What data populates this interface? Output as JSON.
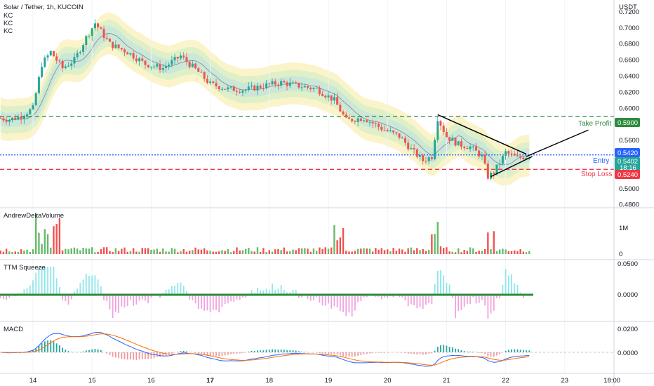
{
  "header": {
    "title": "Solar / Tether, 1h, KUCOIN",
    "indicators": [
      "KC",
      "KC",
      "KC"
    ],
    "currency": "USDT"
  },
  "colors": {
    "up": "#26a69a",
    "down": "#ef5350",
    "take_profit": "#2e8b3e",
    "entry": "#2962ff",
    "stop_loss": "#f23645",
    "band_outer": "#fbf3c4",
    "band_mid": "#dcefc8",
    "band_inner": "#c9e6d9",
    "squeeze_pos": "#8ee6ea",
    "squeeze_neg": "#f0a3e0",
    "macd_line": "#2962ff",
    "signal_line": "#ff6d00",
    "vol_up": "#66bb6a",
    "vol_down": "#ef5350"
  },
  "chart_data": [
    {
      "name": "price",
      "type": "line",
      "ylabel": "USDT",
      "y_ticks": [
        "0.7200",
        "0.7000",
        "0.6800",
        "0.6600",
        "0.6400",
        "0.6200",
        "0.6000",
        "0.5800",
        "0.5600",
        "0.5400",
        "0.5200",
        "0.5000",
        "0.4800"
      ],
      "ylim": [
        0.478,
        0.726
      ],
      "x_ticks": [
        "14",
        "15",
        "16",
        "17",
        "18",
        "19",
        "20",
        "21",
        "22",
        "23",
        "18:00"
      ],
      "x": [
        13.4,
        13.6,
        13.8,
        14.0,
        14.15,
        14.3,
        14.5,
        14.7,
        14.9,
        15.05,
        15.3,
        15.6,
        15.9,
        16.2,
        16.5,
        16.8,
        17.0,
        17.3,
        17.6,
        17.9,
        18.2,
        18.5,
        18.8,
        19.1,
        19.3,
        19.6,
        19.9,
        20.2,
        20.45,
        20.6,
        20.75,
        20.85,
        21.0,
        21.2,
        21.4,
        21.6,
        21.7,
        21.8,
        22.0,
        22.2,
        22.4
      ],
      "close": [
        0.588,
        0.586,
        0.59,
        0.6,
        0.655,
        0.67,
        0.65,
        0.66,
        0.688,
        0.706,
        0.68,
        0.67,
        0.655,
        0.65,
        0.665,
        0.645,
        0.63,
        0.624,
        0.623,
        0.628,
        0.632,
        0.628,
        0.624,
        0.61,
        0.585,
        0.588,
        0.575,
        0.565,
        0.545,
        0.535,
        0.54,
        0.588,
        0.565,
        0.555,
        0.552,
        0.54,
        0.515,
        0.52,
        0.545,
        0.538,
        0.541
      ],
      "series": [
        {
          "name": "Take Profit",
          "level": 0.59,
          "label": "0.5900"
        },
        {
          "name": "Entry",
          "level": 0.542,
          "label": "0.5420"
        },
        {
          "name": "Stop Loss",
          "level": 0.524,
          "label": "0.5240"
        }
      ],
      "last_price": "0.5402",
      "countdown": "18:16"
    },
    {
      "name": "AndrewDeltaVolume",
      "type": "bar",
      "y_ticks": [
        "1M",
        "0"
      ]
    },
    {
      "name": "TTM Squeeze",
      "type": "bar",
      "y_ticks": [
        "0.0500",
        "0.0000"
      ]
    },
    {
      "name": "MACD",
      "type": "line",
      "y_ticks": [
        "0.0200",
        "0.0000"
      ]
    }
  ]
}
